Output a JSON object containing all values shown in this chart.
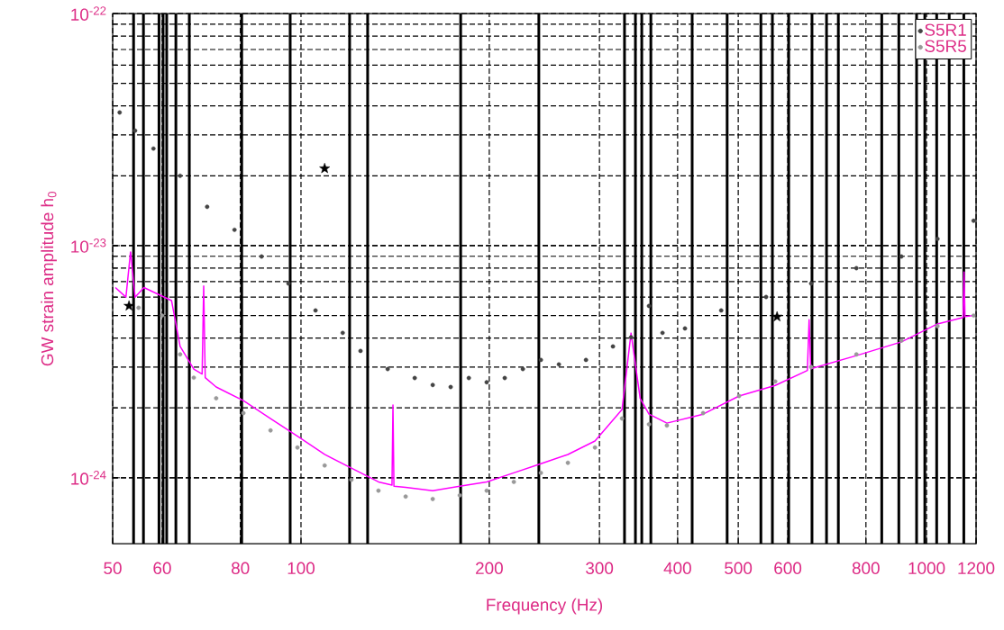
{
  "chart_data": {
    "type": "scatter",
    "xlabel": "Frequency (Hz)",
    "ylabel": "GW strain amplitude h$_{0}$",
    "log": "xy",
    "grid": true,
    "legend": "top right",
    "xlim": [
      50,
      1200
    ],
    "ylim": [
      5.2e-25,
      1e-22
    ],
    "xticks": [
      50,
      60,
      80,
      100,
      200,
      300,
      400,
      500,
      600,
      800,
      1000,
      1200
    ],
    "yticks": [
      {
        "value": 1e-24,
        "label": "10$^{-24}$"
      },
      {
        "value": 1e-23,
        "label": "10$^{-23}$"
      },
      {
        "value": 1e-22,
        "label": "10$^{-22}$"
      }
    ],
    "ref_lines": [
      {
        "axis": "x",
        "value": 54,
        "color": "#000000"
      },
      {
        "axis": "x",
        "value": 56,
        "color": "#000000"
      },
      {
        "axis": "x",
        "value": 59.3,
        "color": "#000000"
      },
      {
        "axis": "x",
        "value": 60.2,
        "color": "#000000"
      },
      {
        "axis": "x",
        "value": 61,
        "color": "#000000"
      },
      {
        "axis": "x",
        "value": 63.1,
        "color": "#000000"
      },
      {
        "axis": "x",
        "value": 66.3,
        "color": "#000000"
      },
      {
        "axis": "x",
        "value": 80.4,
        "color": "#000000"
      },
      {
        "axis": "x",
        "value": 96.1,
        "color": "#000000"
      },
      {
        "axis": "x",
        "value": 119.6,
        "color": "#000000"
      },
      {
        "axis": "x",
        "value": 127.8,
        "color": "#000000"
      },
      {
        "axis": "x",
        "value": 180,
        "color": "#000000"
      },
      {
        "axis": "x",
        "value": 240,
        "color": "#000000"
      },
      {
        "axis": "x",
        "value": 329,
        "color": "#000000"
      },
      {
        "axis": "x",
        "value": 342.5,
        "color": "#000000"
      },
      {
        "axis": "x",
        "value": 350.6,
        "color": "#000000"
      },
      {
        "axis": "x",
        "value": 362.5,
        "color": "#000000"
      },
      {
        "axis": "x",
        "value": 422,
        "color": "#000000"
      },
      {
        "axis": "x",
        "value": 480,
        "color": "#000000"
      },
      {
        "axis": "x",
        "value": 543.5,
        "color": "#000000"
      },
      {
        "axis": "x",
        "value": 567,
        "color": "#000000"
      },
      {
        "axis": "x",
        "value": 602,
        "color": "#000000"
      },
      {
        "axis": "x",
        "value": 656,
        "color": "#000000"
      },
      {
        "axis": "x",
        "value": 692,
        "color": "#000000"
      },
      {
        "axis": "x",
        "value": 722.8,
        "color": "#000000"
      },
      {
        "axis": "x",
        "value": 848,
        "color": "#000000"
      },
      {
        "axis": "x",
        "value": 903,
        "color": "#000000"
      },
      {
        "axis": "x",
        "value": 964,
        "color": "#000000"
      },
      {
        "axis": "x",
        "value": 993.6,
        "color": "#000000"
      },
      {
        "axis": "x",
        "value": 1038,
        "color": "#000000"
      },
      {
        "axis": "x",
        "value": 1087,
        "color": "#000000"
      },
      {
        "axis": "x",
        "value": 1147,
        "color": "#000000"
      }
    ],
    "series": [
      {
        "name": "S5R1",
        "marker": "circle",
        "color": "#444444",
        "x": [
          51.3,
          54.3,
          58.1,
          64.1,
          70.8,
          78.3,
          86.5,
          95.5,
          105.5,
          116.6,
          124.5,
          137.6,
          152,
          162.4,
          173.5,
          185.5,
          198.1,
          211.7,
          226.3,
          241.8,
          258.4,
          285.5,
          315.3,
          337,
          360,
          378.4,
          411,
          469.6,
          554,
          654,
          772.5,
          911.6,
          1041,
          1189
        ],
        "values": [
          3.75e-23,
          3.13e-23,
          2.62e-23,
          2e-23,
          1.47e-23,
          1.17e-23,
          8.98e-24,
          6.87e-24,
          5.26e-24,
          4.21e-24,
          3.52e-24,
          2.94e-24,
          2.69e-24,
          2.51e-24,
          2.46e-24,
          2.69e-24,
          2.58e-24,
          2.69e-24,
          2.94e-24,
          3.22e-24,
          3.08e-24,
          3.22e-24,
          3.68e-24,
          4.03e-24,
          5.5e-24,
          4.21e-24,
          4.4e-24,
          5.26e-24,
          6.01e-24,
          6.87e-24,
          8e-24,
          8.98e-24,
          1.07e-23,
          1.28e-23
        ]
      },
      {
        "name": "S5R5",
        "marker": "circle",
        "color": "#999999",
        "x": [
          55,
          60,
          64.1,
          67.4,
          73.2,
          80.9,
          89.4,
          98.7,
          109.1,
          120.4,
          133,
          147,
          162.4,
          179.4,
          198.1,
          218.9,
          241.8,
          267.1,
          295.1,
          326,
          360,
          384.6,
          439.4,
          501.6,
          573,
          654,
          772.5,
          911.6,
          1041,
          1189
        ],
        "values": [
          5.4e-24,
          5e-24,
          3.4e-24,
          2.7e-24,
          2.2e-24,
          1.9e-24,
          1.6e-24,
          1.35e-24,
          1.13e-24,
          9.8e-25,
          8.8e-25,
          8.3e-25,
          8.1e-25,
          8.4e-25,
          8.8e-25,
          9.6e-25,
          1.05e-24,
          1.16e-24,
          1.35e-24,
          1.8e-24,
          1.7e-24,
          1.68e-24,
          1.9e-24,
          2.25e-24,
          2.6e-24,
          3e-24,
          3.4e-24,
          3.9e-24,
          4.5e-24,
          5e-24
        ]
      },
      {
        "type": "line",
        "marker": "none",
        "color": "#ff00ff",
        "x": [
          50.5,
          52.5,
          53.4,
          54.3,
          56.1,
          62.1,
          64.1,
          67.4,
          69.5,
          69.9,
          70.3,
          73.2,
          80.9,
          89.4,
          98.7,
          109.1,
          120.4,
          133,
          139.8,
          140.3,
          140.8,
          147,
          162.4,
          179.4,
          198.1,
          218.9,
          241.8,
          267.1,
          295.1,
          326,
          337,
          348.5,
          360,
          384.6,
          439.4,
          501.6,
          573,
          645,
          649,
          653,
          772.5,
          911.6,
          1041,
          1144,
          1148,
          1152,
          1189
        ],
        "values": [
          6.6e-24,
          6e-24,
          9.4e-24,
          6e-24,
          6.6e-24,
          5.8e-24,
          3.68e-24,
          2.94e-24,
          2.8e-24,
          6.7e-24,
          2.7e-24,
          2.46e-24,
          2.15e-24,
          1.8e-24,
          1.51e-24,
          1.26e-24,
          1.1e-24,
          9.6e-25,
          9.3e-25,
          2.06e-24,
          9.2e-25,
          9.1e-25,
          8.8e-25,
          9.2e-25,
          9.6e-25,
          1.05e-24,
          1.15e-24,
          1.26e-24,
          1.44e-24,
          1.97e-24,
          4.2e-24,
          2.2e-24,
          1.88e-24,
          1.72e-24,
          1.88e-24,
          2.25e-24,
          2.5e-24,
          2.9e-24,
          4.8e-24,
          2.95e-24,
          3.36e-24,
          3.85e-24,
          4.6e-24,
          4.9e-24,
          7.7e-24,
          4.95e-24,
          5e-24
        ]
      },
      {
        "marker": "star",
        "color": "#000000",
        "x": [
          53.1,
          109.1,
          576.8
        ],
        "values": [
          5.5e-24,
          2.15e-23,
          4.94e-24
        ]
      }
    ]
  }
}
